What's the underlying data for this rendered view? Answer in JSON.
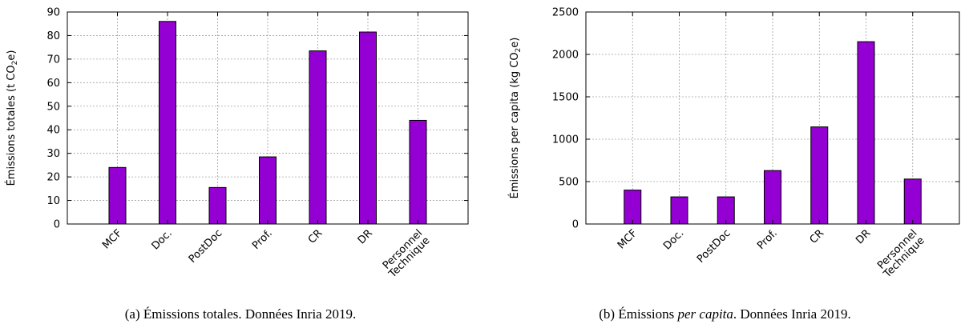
{
  "chart_data": [
    {
      "type": "bar",
      "categories": [
        "MCF",
        "Doc.",
        "PostDoc",
        "Prof.",
        "CR",
        "DR",
        "Personnel\nTechnique"
      ],
      "values": [
        24,
        86,
        15.5,
        28.5,
        73.5,
        81.5,
        44
      ],
      "ylabel": "Émissions totales (t CO₂e)",
      "ylim": [
        0,
        90
      ],
      "yticks": [
        0,
        10,
        20,
        30,
        40,
        50,
        60,
        70,
        80,
        90
      ],
      "grid": true,
      "bar_color": "#9400d3",
      "caption_prefix": "(a) Émissions totales.",
      "caption_suffix": " Données Inria 2019."
    },
    {
      "type": "bar",
      "categories": [
        "MCF",
        "Doc.",
        "PostDoc",
        "Prof.",
        "CR",
        "DR",
        "Personnel\nTechnique"
      ],
      "values": [
        400,
        320,
        320,
        630,
        1145,
        2150,
        530
      ],
      "ylabel": "Émissions per capita (kg CO₂e)",
      "ylim": [
        0,
        2500
      ],
      "yticks": [
        0,
        500,
        1000,
        1500,
        2000,
        2500
      ],
      "grid": true,
      "bar_color": "#9400d3",
      "caption_prefix": "(b) Émissions ",
      "caption_italic": "per capita",
      "caption_suffix": ". Données Inria 2019."
    }
  ]
}
